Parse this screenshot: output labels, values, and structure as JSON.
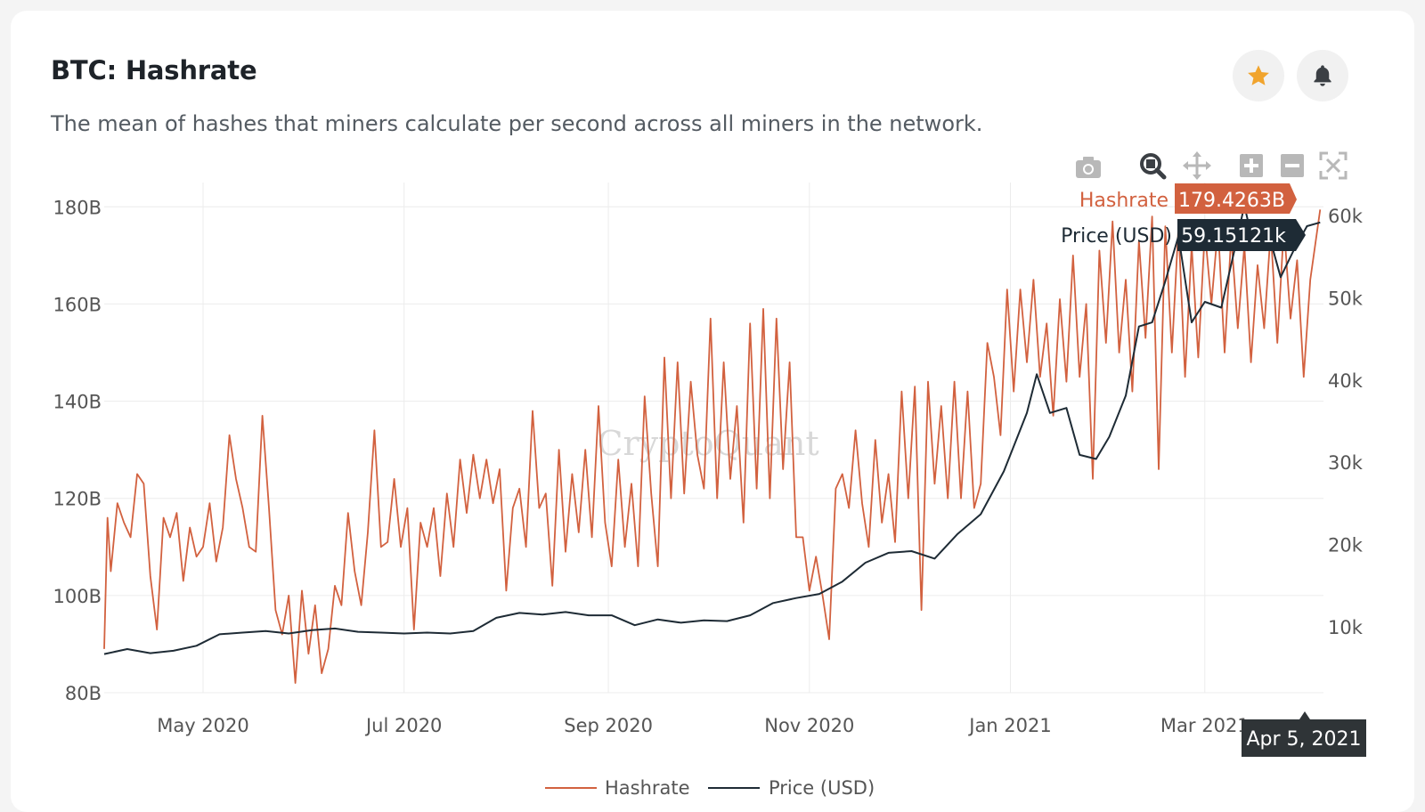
{
  "header": {
    "title": "BTC: Hashrate",
    "subtitle": "The mean of hashes that miners calculate per second across all miners in the network."
  },
  "actions": {
    "star_icon": "star-icon",
    "bell_icon": "bell-icon"
  },
  "toolbar": [
    "camera-icon",
    "zoom-icon",
    "pan-icon",
    "zoom-in-icon",
    "zoom-out-icon",
    "autoscale-icon"
  ],
  "watermark": "CryptoQuant",
  "colors": {
    "hashrate": "#d2613f",
    "price": "#1e2b35",
    "star": "#f1a42d",
    "icon": "#3b3f44"
  },
  "chart_data": {
    "type": "line",
    "x_range": [
      "2020-04-01",
      "2021-04-06"
    ],
    "x_ticks": [
      {
        "date": "2020-05-01",
        "label": "May 2020"
      },
      {
        "date": "2020-07-01",
        "label": "Jul 2020"
      },
      {
        "date": "2020-09-01",
        "label": "Sep 2020"
      },
      {
        "date": "2020-11-01",
        "label": "Nov 2020"
      },
      {
        "date": "2021-01-01",
        "label": "Jan 2021"
      },
      {
        "date": "2021-03-01",
        "label": "Mar 2021"
      }
    ],
    "y_left": {
      "range": [
        80,
        185
      ],
      "unit": "B",
      "ticks": [
        {
          "v": 80,
          "label": "80B"
        },
        {
          "v": 100,
          "label": "100B"
        },
        {
          "v": 120,
          "label": "120B"
        },
        {
          "v": 140,
          "label": "140B"
        },
        {
          "v": 160,
          "label": "160B"
        },
        {
          "v": 180,
          "label": "180B"
        }
      ]
    },
    "y_right": {
      "range": [
        2000,
        64000
      ],
      "ticks": [
        {
          "v": 10000,
          "label": "10k"
        },
        {
          "v": 20000,
          "label": "20k"
        },
        {
          "v": 30000,
          "label": "30k"
        },
        {
          "v": 40000,
          "label": "40k"
        },
        {
          "v": 50000,
          "label": "50k"
        },
        {
          "v": 60000,
          "label": "60k"
        }
      ]
    },
    "grid": true,
    "legend_position": "bottom-center",
    "series": [
      {
        "name": "Hashrate",
        "axis": "left",
        "color": "#d2613f",
        "points": [
          [
            "2020-04-01",
            89
          ],
          [
            "2020-04-02",
            116
          ],
          [
            "2020-04-03",
            105
          ],
          [
            "2020-04-05",
            119
          ],
          [
            "2020-04-07",
            115
          ],
          [
            "2020-04-09",
            112
          ],
          [
            "2020-04-11",
            125
          ],
          [
            "2020-04-13",
            123
          ],
          [
            "2020-04-15",
            104
          ],
          [
            "2020-04-17",
            93
          ],
          [
            "2020-04-19",
            116
          ],
          [
            "2020-04-21",
            112
          ],
          [
            "2020-04-23",
            117
          ],
          [
            "2020-04-25",
            103
          ],
          [
            "2020-04-27",
            114
          ],
          [
            "2020-04-29",
            108
          ],
          [
            "2020-05-01",
            110
          ],
          [
            "2020-05-03",
            119
          ],
          [
            "2020-05-05",
            107
          ],
          [
            "2020-05-07",
            114
          ],
          [
            "2020-05-09",
            133
          ],
          [
            "2020-05-11",
            124
          ],
          [
            "2020-05-13",
            118
          ],
          [
            "2020-05-15",
            110
          ],
          [
            "2020-05-17",
            109
          ],
          [
            "2020-05-19",
            137
          ],
          [
            "2020-05-21",
            118
          ],
          [
            "2020-05-23",
            97
          ],
          [
            "2020-05-25",
            92
          ],
          [
            "2020-05-27",
            100
          ],
          [
            "2020-05-29",
            82
          ],
          [
            "2020-05-31",
            101
          ],
          [
            "2020-06-02",
            88
          ],
          [
            "2020-06-04",
            98
          ],
          [
            "2020-06-06",
            84
          ],
          [
            "2020-06-08",
            89
          ],
          [
            "2020-06-10",
            102
          ],
          [
            "2020-06-12",
            98
          ],
          [
            "2020-06-14",
            117
          ],
          [
            "2020-06-16",
            105
          ],
          [
            "2020-06-18",
            98
          ],
          [
            "2020-06-20",
            113
          ],
          [
            "2020-06-22",
            134
          ],
          [
            "2020-06-24",
            110
          ],
          [
            "2020-06-26",
            111
          ],
          [
            "2020-06-28",
            124
          ],
          [
            "2020-06-30",
            110
          ],
          [
            "2020-07-02",
            118
          ],
          [
            "2020-07-04",
            93
          ],
          [
            "2020-07-06",
            115
          ],
          [
            "2020-07-08",
            110
          ],
          [
            "2020-07-10",
            118
          ],
          [
            "2020-07-12",
            104
          ],
          [
            "2020-07-14",
            121
          ],
          [
            "2020-07-16",
            110
          ],
          [
            "2020-07-18",
            128
          ],
          [
            "2020-07-20",
            117
          ],
          [
            "2020-07-22",
            129
          ],
          [
            "2020-07-24",
            120
          ],
          [
            "2020-07-26",
            128
          ],
          [
            "2020-07-28",
            119
          ],
          [
            "2020-07-30",
            126
          ],
          [
            "2020-08-01",
            101
          ],
          [
            "2020-08-03",
            118
          ],
          [
            "2020-08-05",
            122
          ],
          [
            "2020-08-07",
            110
          ],
          [
            "2020-08-09",
            138
          ],
          [
            "2020-08-11",
            118
          ],
          [
            "2020-08-13",
            121
          ],
          [
            "2020-08-15",
            102
          ],
          [
            "2020-08-17",
            130
          ],
          [
            "2020-08-19",
            109
          ],
          [
            "2020-08-21",
            125
          ],
          [
            "2020-08-23",
            113
          ],
          [
            "2020-08-25",
            130
          ],
          [
            "2020-08-27",
            112
          ],
          [
            "2020-08-29",
            139
          ],
          [
            "2020-08-31",
            115
          ],
          [
            "2020-09-02",
            106
          ],
          [
            "2020-09-04",
            128
          ],
          [
            "2020-09-06",
            110
          ],
          [
            "2020-09-08",
            123
          ],
          [
            "2020-09-10",
            106
          ],
          [
            "2020-09-12",
            141
          ],
          [
            "2020-09-14",
            121
          ],
          [
            "2020-09-16",
            106
          ],
          [
            "2020-09-18",
            149
          ],
          [
            "2020-09-20",
            120
          ],
          [
            "2020-09-22",
            148
          ],
          [
            "2020-09-24",
            121
          ],
          [
            "2020-09-26",
            144
          ],
          [
            "2020-09-28",
            129
          ],
          [
            "2020-09-30",
            122
          ],
          [
            "2020-10-02",
            157
          ],
          [
            "2020-10-04",
            120
          ],
          [
            "2020-10-06",
            148
          ],
          [
            "2020-10-08",
            124
          ],
          [
            "2020-10-10",
            139
          ],
          [
            "2020-10-12",
            115
          ],
          [
            "2020-10-14",
            156
          ],
          [
            "2020-10-16",
            122
          ],
          [
            "2020-10-18",
            159
          ],
          [
            "2020-10-20",
            120
          ],
          [
            "2020-10-22",
            157
          ],
          [
            "2020-10-24",
            126
          ],
          [
            "2020-10-26",
            148
          ],
          [
            "2020-10-28",
            112
          ],
          [
            "2020-10-30",
            112
          ],
          [
            "2020-11-01",
            101
          ],
          [
            "2020-11-03",
            108
          ],
          [
            "2020-11-05",
            100
          ],
          [
            "2020-11-07",
            91
          ],
          [
            "2020-11-09",
            122
          ],
          [
            "2020-11-11",
            125
          ],
          [
            "2020-11-13",
            118
          ],
          [
            "2020-11-15",
            134
          ],
          [
            "2020-11-17",
            119
          ],
          [
            "2020-11-19",
            110
          ],
          [
            "2020-11-21",
            132
          ],
          [
            "2020-11-23",
            115
          ],
          [
            "2020-11-25",
            125
          ],
          [
            "2020-11-27",
            111
          ],
          [
            "2020-11-29",
            142
          ],
          [
            "2020-12-01",
            120
          ],
          [
            "2020-12-03",
            143
          ],
          [
            "2020-12-05",
            97
          ],
          [
            "2020-12-07",
            144
          ],
          [
            "2020-12-09",
            123
          ],
          [
            "2020-12-11",
            139
          ],
          [
            "2020-12-13",
            120
          ],
          [
            "2020-12-15",
            144
          ],
          [
            "2020-12-17",
            120
          ],
          [
            "2020-12-19",
            142
          ],
          [
            "2020-12-21",
            118
          ],
          [
            "2020-12-23",
            123
          ],
          [
            "2020-12-25",
            152
          ],
          [
            "2020-12-27",
            145
          ],
          [
            "2020-12-29",
            133
          ],
          [
            "2020-12-31",
            163
          ],
          [
            "2021-01-02",
            142
          ],
          [
            "2021-01-04",
            163
          ],
          [
            "2021-01-06",
            148
          ],
          [
            "2021-01-08",
            165
          ],
          [
            "2021-01-10",
            145
          ],
          [
            "2021-01-12",
            156
          ],
          [
            "2021-01-14",
            137
          ],
          [
            "2021-01-16",
            161
          ],
          [
            "2021-01-18",
            144
          ],
          [
            "2021-01-20",
            170
          ],
          [
            "2021-01-22",
            145
          ],
          [
            "2021-01-24",
            160
          ],
          [
            "2021-01-26",
            124
          ],
          [
            "2021-01-28",
            171
          ],
          [
            "2021-01-30",
            152
          ],
          [
            "2021-02-01",
            177
          ],
          [
            "2021-02-03",
            150
          ],
          [
            "2021-02-05",
            165
          ],
          [
            "2021-02-07",
            142
          ],
          [
            "2021-02-09",
            173
          ],
          [
            "2021-02-11",
            153
          ],
          [
            "2021-02-13",
            178
          ],
          [
            "2021-02-15",
            126
          ],
          [
            "2021-02-17",
            176
          ],
          [
            "2021-02-19",
            150
          ],
          [
            "2021-02-21",
            176
          ],
          [
            "2021-02-23",
            145
          ],
          [
            "2021-02-25",
            172
          ],
          [
            "2021-02-27",
            149
          ],
          [
            "2021-03-01",
            175
          ],
          [
            "2021-03-03",
            160
          ],
          [
            "2021-03-05",
            176
          ],
          [
            "2021-03-07",
            150
          ],
          [
            "2021-03-09",
            174
          ],
          [
            "2021-03-11",
            155
          ],
          [
            "2021-03-13",
            172
          ],
          [
            "2021-03-15",
            148
          ],
          [
            "2021-03-17",
            168
          ],
          [
            "2021-03-19",
            155
          ],
          [
            "2021-03-21",
            175
          ],
          [
            "2021-03-23",
            152
          ],
          [
            "2021-03-25",
            176
          ],
          [
            "2021-03-27",
            157
          ],
          [
            "2021-03-29",
            169
          ],
          [
            "2021-03-31",
            145
          ],
          [
            "2021-04-02",
            165
          ],
          [
            "2021-04-05",
            179.4263
          ]
        ]
      },
      {
        "name": "Price (USD)",
        "axis": "right",
        "color": "#1e2b35",
        "points": [
          [
            "2020-04-01",
            6700
          ],
          [
            "2020-04-08",
            7300
          ],
          [
            "2020-04-15",
            6800
          ],
          [
            "2020-04-22",
            7100
          ],
          [
            "2020-04-29",
            7700
          ],
          [
            "2020-05-06",
            9100
          ],
          [
            "2020-05-13",
            9300
          ],
          [
            "2020-05-20",
            9500
          ],
          [
            "2020-05-27",
            9200
          ],
          [
            "2020-06-03",
            9600
          ],
          [
            "2020-06-10",
            9800
          ],
          [
            "2020-06-17",
            9400
          ],
          [
            "2020-06-24",
            9300
          ],
          [
            "2020-07-01",
            9200
          ],
          [
            "2020-07-08",
            9300
          ],
          [
            "2020-07-15",
            9200
          ],
          [
            "2020-07-22",
            9500
          ],
          [
            "2020-07-29",
            11100
          ],
          [
            "2020-08-05",
            11700
          ],
          [
            "2020-08-12",
            11500
          ],
          [
            "2020-08-19",
            11800
          ],
          [
            "2020-08-26",
            11400
          ],
          [
            "2020-09-02",
            11400
          ],
          [
            "2020-09-09",
            10200
          ],
          [
            "2020-09-16",
            10900
          ],
          [
            "2020-09-23",
            10500
          ],
          [
            "2020-09-30",
            10800
          ],
          [
            "2020-10-07",
            10700
          ],
          [
            "2020-10-14",
            11400
          ],
          [
            "2020-10-21",
            12900
          ],
          [
            "2020-10-28",
            13500
          ],
          [
            "2020-11-04",
            14000
          ],
          [
            "2020-11-11",
            15500
          ],
          [
            "2020-11-18",
            17800
          ],
          [
            "2020-11-25",
            19000
          ],
          [
            "2020-12-02",
            19200
          ],
          [
            "2020-12-09",
            18300
          ],
          [
            "2020-12-16",
            21300
          ],
          [
            "2020-12-23",
            23700
          ],
          [
            "2020-12-30",
            28900
          ],
          [
            "2021-01-06",
            36000
          ],
          [
            "2021-01-09",
            40700
          ],
          [
            "2021-01-13",
            36000
          ],
          [
            "2021-01-18",
            36600
          ],
          [
            "2021-01-22",
            30900
          ],
          [
            "2021-01-27",
            30400
          ],
          [
            "2021-01-31",
            33100
          ],
          [
            "2021-02-05",
            38100
          ],
          [
            "2021-02-09",
            46500
          ],
          [
            "2021-02-13",
            47000
          ],
          [
            "2021-02-17",
            52000
          ],
          [
            "2021-02-21",
            57500
          ],
          [
            "2021-02-25",
            47000
          ],
          [
            "2021-03-01",
            49500
          ],
          [
            "2021-03-06",
            48800
          ],
          [
            "2021-03-10",
            55800
          ],
          [
            "2021-03-13",
            61200
          ],
          [
            "2021-03-16",
            56000
          ],
          [
            "2021-03-20",
            58300
          ],
          [
            "2021-03-24",
            52500
          ],
          [
            "2021-03-28",
            55800
          ],
          [
            "2021-04-01",
            58700
          ],
          [
            "2021-04-05",
            59151.21
          ]
        ]
      }
    ],
    "hover": {
      "date_label": "Apr 5, 2021",
      "hashrate": {
        "name": "Hashrate",
        "value": "179.4263B"
      },
      "price": {
        "name": "Price (USD)",
        "value": "59.15121k"
      }
    }
  }
}
